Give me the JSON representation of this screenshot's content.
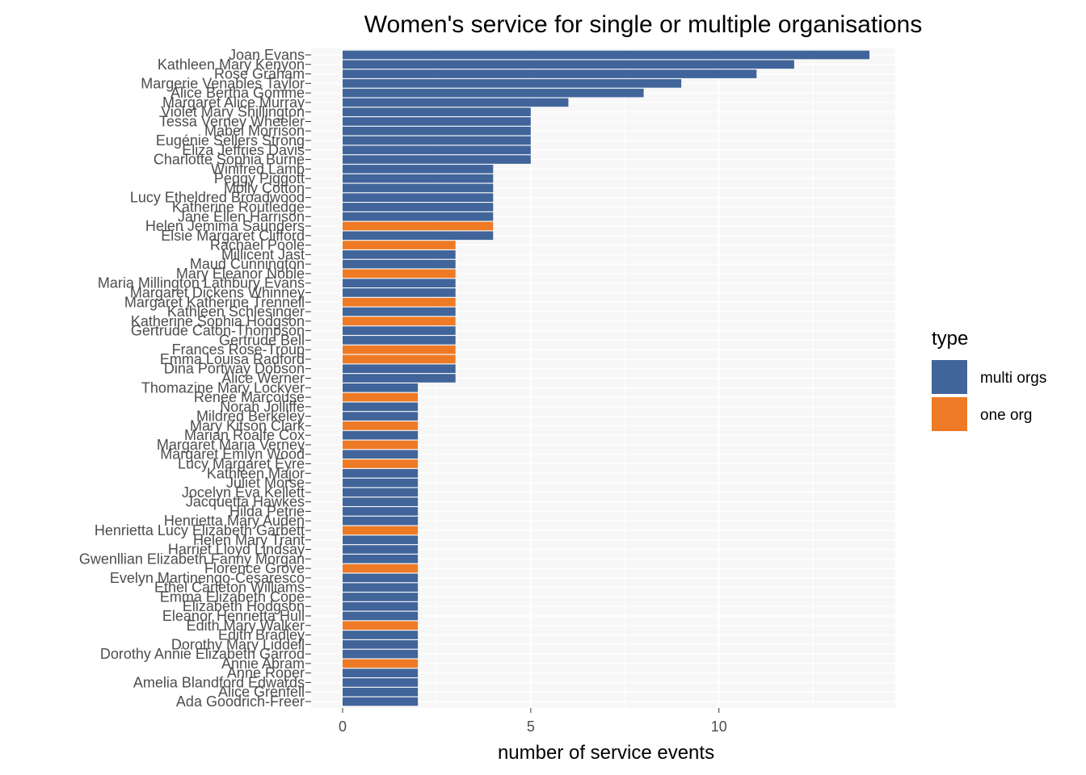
{
  "chart_data": {
    "type": "bar",
    "orientation": "horizontal",
    "title": "Women's service for single or multiple organisations",
    "xlabel": "number of service events",
    "ylabel": "",
    "xlim": [
      -0.4,
      14.7
    ],
    "xticks": [
      0,
      5,
      10
    ],
    "grid": true,
    "legend": {
      "title": "type",
      "position": "right",
      "entries": [
        {
          "name": "multi orgs",
          "color": "#41659A"
        },
        {
          "name": "one org",
          "color": "#EE7A25"
        }
      ]
    },
    "bars": [
      {
        "name": "Joan Evans",
        "value": 14,
        "type": "multi orgs"
      },
      {
        "name": "Kathleen Mary Kenyon",
        "value": 12,
        "type": "multi orgs"
      },
      {
        "name": "Rose Graham",
        "value": 11,
        "type": "multi orgs"
      },
      {
        "name": "Margerie Venables Taylor",
        "value": 9,
        "type": "multi orgs"
      },
      {
        "name": "Alice Bertha Gomme",
        "value": 8,
        "type": "multi orgs"
      },
      {
        "name": "Margaret Alice Murray",
        "value": 6,
        "type": "multi orgs"
      },
      {
        "name": "Violet Mary Shillington",
        "value": 5,
        "type": "multi orgs"
      },
      {
        "name": "Tessa Verney Wheeler",
        "value": 5,
        "type": "multi orgs"
      },
      {
        "name": "Mabel Morrison",
        "value": 5,
        "type": "multi orgs"
      },
      {
        "name": "Eugénie Sellers Strong",
        "value": 5,
        "type": "multi orgs"
      },
      {
        "name": "Eliza Jeffries Davis",
        "value": 5,
        "type": "multi orgs"
      },
      {
        "name": "Charlotte Sophia Burne",
        "value": 5,
        "type": "multi orgs"
      },
      {
        "name": "Winifred Lamb",
        "value": 4,
        "type": "multi orgs"
      },
      {
        "name": "Peggy Piggott",
        "value": 4,
        "type": "multi orgs"
      },
      {
        "name": "Molly Cotton",
        "value": 4,
        "type": "multi orgs"
      },
      {
        "name": "Lucy Etheldred Broadwood",
        "value": 4,
        "type": "multi orgs"
      },
      {
        "name": "Katherine Routledge",
        "value": 4,
        "type": "multi orgs"
      },
      {
        "name": "Jane Ellen Harrison",
        "value": 4,
        "type": "multi orgs"
      },
      {
        "name": "Helen Jemima Saunders",
        "value": 4,
        "type": "one org"
      },
      {
        "name": "Elsie Margaret Clifford",
        "value": 4,
        "type": "multi orgs"
      },
      {
        "name": "Rachael Poole",
        "value": 3,
        "type": "one org"
      },
      {
        "name": "Millicent Jast",
        "value": 3,
        "type": "multi orgs"
      },
      {
        "name": "Maud Cunnington",
        "value": 3,
        "type": "multi orgs"
      },
      {
        "name": "Mary Eleanor Noble",
        "value": 3,
        "type": "one org"
      },
      {
        "name": "Maria Millington Lathbury Evans",
        "value": 3,
        "type": "multi orgs"
      },
      {
        "name": "Margaret Dickens Whinney",
        "value": 3,
        "type": "multi orgs"
      },
      {
        "name": "Margaret Katherine Trennell",
        "value": 3,
        "type": "one org"
      },
      {
        "name": "Kathleen Schlesinger",
        "value": 3,
        "type": "multi orgs"
      },
      {
        "name": "Katherine Sophia Hodgson",
        "value": 3,
        "type": "one org"
      },
      {
        "name": "Gertrude Caton-Thompson",
        "value": 3,
        "type": "multi orgs"
      },
      {
        "name": "Gertrude Bell",
        "value": 3,
        "type": "multi orgs"
      },
      {
        "name": "Frances Rose-Troup",
        "value": 3,
        "type": "one org"
      },
      {
        "name": "Emma Louisa Radford",
        "value": 3,
        "type": "one org"
      },
      {
        "name": "Dina Portway Dobson",
        "value": 3,
        "type": "multi orgs"
      },
      {
        "name": "Alice Werner",
        "value": 3,
        "type": "multi orgs"
      },
      {
        "name": "Thomazine Mary Lockyer",
        "value": 2,
        "type": "multi orgs"
      },
      {
        "name": "Renee Marcouse",
        "value": 2,
        "type": "one org"
      },
      {
        "name": "Norah Jolliffe",
        "value": 2,
        "type": "multi orgs"
      },
      {
        "name": "Mildred Berkeley",
        "value": 2,
        "type": "multi orgs"
      },
      {
        "name": "Mary Kitson Clark",
        "value": 2,
        "type": "one org"
      },
      {
        "name": "Marian Roalfe Cox",
        "value": 2,
        "type": "multi orgs"
      },
      {
        "name": "Margaret Maria Verney",
        "value": 2,
        "type": "one org"
      },
      {
        "name": "Margaret Emlyn Wood",
        "value": 2,
        "type": "multi orgs"
      },
      {
        "name": "Lucy Margaret Eyre",
        "value": 2,
        "type": "one org"
      },
      {
        "name": "Kathleen Major",
        "value": 2,
        "type": "multi orgs"
      },
      {
        "name": "Juliet Morse",
        "value": 2,
        "type": "multi orgs"
      },
      {
        "name": "Jocelyn Eva Kellett",
        "value": 2,
        "type": "multi orgs"
      },
      {
        "name": "Jacquetta Hawkes",
        "value": 2,
        "type": "multi orgs"
      },
      {
        "name": "Hilda Petrie",
        "value": 2,
        "type": "multi orgs"
      },
      {
        "name": "Henrietta Mary Auden",
        "value": 2,
        "type": "multi orgs"
      },
      {
        "name": "Henrietta Lucy Elizabeth Garbett",
        "value": 2,
        "type": "one org"
      },
      {
        "name": "Helen Mary Trant",
        "value": 2,
        "type": "multi orgs"
      },
      {
        "name": "Harriet Lloyd Lindsay",
        "value": 2,
        "type": "multi orgs"
      },
      {
        "name": "Gwenllian Elizabeth Fanny Morgan",
        "value": 2,
        "type": "multi orgs"
      },
      {
        "name": "Florence Grove",
        "value": 2,
        "type": "one org"
      },
      {
        "name": "Evelyn Martinengo-Cesaresco",
        "value": 2,
        "type": "multi orgs"
      },
      {
        "name": "Ethel Carleton Williams",
        "value": 2,
        "type": "multi orgs"
      },
      {
        "name": "Emma Elizabeth Cope",
        "value": 2,
        "type": "multi orgs"
      },
      {
        "name": "Elizabeth Hodgson",
        "value": 2,
        "type": "multi orgs"
      },
      {
        "name": "Eleanor Henrietta Hull",
        "value": 2,
        "type": "multi orgs"
      },
      {
        "name": "Edith Mary Walker",
        "value": 2,
        "type": "one org"
      },
      {
        "name": "Edith Bradley",
        "value": 2,
        "type": "multi orgs"
      },
      {
        "name": "Dorothy Mary Liddell",
        "value": 2,
        "type": "multi orgs"
      },
      {
        "name": "Dorothy Annie Elizabeth Garrod",
        "value": 2,
        "type": "multi orgs"
      },
      {
        "name": "Annie Abram",
        "value": 2,
        "type": "one org"
      },
      {
        "name": "Anne Roper",
        "value": 2,
        "type": "multi orgs"
      },
      {
        "name": "Amelia Blandford Edwards",
        "value": 2,
        "type": "multi orgs"
      },
      {
        "name": "Alice Grenfell",
        "value": 2,
        "type": "multi orgs"
      },
      {
        "name": "Ada Goodrich-Freer",
        "value": 2,
        "type": "multi orgs"
      }
    ]
  }
}
